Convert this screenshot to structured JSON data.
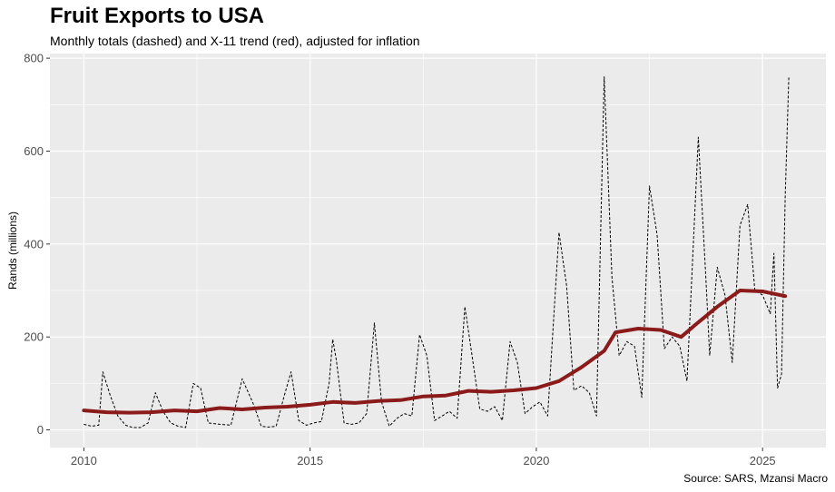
{
  "chart_data": {
    "type": "line",
    "title": "Fruit Exports to USA",
    "subtitle": "Monthly totals (dashed) and X-11 trend (red), adjusted for inflation",
    "caption": "Source: SARS, Mzansi Macro",
    "xlabel": "",
    "ylabel": "Rands (millions)",
    "xlim": [
      2009.25,
      2026.4
    ],
    "ylim": [
      -38,
      810
    ],
    "x_ticks": [
      2010,
      2015,
      2020,
      2025
    ],
    "y_ticks": [
      0,
      200,
      400,
      600,
      800
    ],
    "grid": true,
    "colors": {
      "panel": "#ebebeb",
      "grid": "#ffffff",
      "trend": "#8b1a1a",
      "monthly": "#000000"
    },
    "series": [
      {
        "name": "Monthly totals",
        "style": "dashed",
        "points": [
          [
            2010.0,
            12
          ],
          [
            2010.17,
            8
          ],
          [
            2010.33,
            10
          ],
          [
            2010.42,
            125
          ],
          [
            2010.58,
            75
          ],
          [
            2010.75,
            30
          ],
          [
            2010.92,
            10
          ],
          [
            2011.08,
            5
          ],
          [
            2011.25,
            5
          ],
          [
            2011.42,
            15
          ],
          [
            2011.58,
            80
          ],
          [
            2011.75,
            40
          ],
          [
            2011.92,
            15
          ],
          [
            2012.08,
            8
          ],
          [
            2012.25,
            5
          ],
          [
            2012.42,
            100
          ],
          [
            2012.58,
            90
          ],
          [
            2012.75,
            15
          ],
          [
            2013.0,
            12
          ],
          [
            2013.25,
            10
          ],
          [
            2013.5,
            110
          ],
          [
            2013.75,
            55
          ],
          [
            2013.92,
            8
          ],
          [
            2014.08,
            6
          ],
          [
            2014.25,
            8
          ],
          [
            2014.42,
            70
          ],
          [
            2014.58,
            125
          ],
          [
            2014.75,
            20
          ],
          [
            2014.92,
            10
          ],
          [
            2015.08,
            15
          ],
          [
            2015.25,
            18
          ],
          [
            2015.42,
            100
          ],
          [
            2015.5,
            195
          ],
          [
            2015.58,
            150
          ],
          [
            2015.75,
            15
          ],
          [
            2015.92,
            12
          ],
          [
            2016.08,
            15
          ],
          [
            2016.25,
            35
          ],
          [
            2016.42,
            230
          ],
          [
            2016.58,
            60
          ],
          [
            2016.75,
            8
          ],
          [
            2016.92,
            25
          ],
          [
            2017.08,
            35
          ],
          [
            2017.25,
            30
          ],
          [
            2017.42,
            205
          ],
          [
            2017.58,
            160
          ],
          [
            2017.75,
            20
          ],
          [
            2017.92,
            30
          ],
          [
            2018.08,
            40
          ],
          [
            2018.25,
            25
          ],
          [
            2018.42,
            265
          ],
          [
            2018.58,
            160
          ],
          [
            2018.75,
            45
          ],
          [
            2018.92,
            40
          ],
          [
            2019.08,
            50
          ],
          [
            2019.25,
            20
          ],
          [
            2019.42,
            190
          ],
          [
            2019.58,
            145
          ],
          [
            2019.75,
            35
          ],
          [
            2019.92,
            50
          ],
          [
            2020.08,
            60
          ],
          [
            2020.25,
            30
          ],
          [
            2020.5,
            425
          ],
          [
            2020.67,
            310
          ],
          [
            2020.83,
            85
          ],
          [
            2021.0,
            95
          ],
          [
            2021.17,
            80
          ],
          [
            2021.33,
            30
          ],
          [
            2021.5,
            760
          ],
          [
            2021.67,
            330
          ],
          [
            2021.83,
            160
          ],
          [
            2022.0,
            190
          ],
          [
            2022.17,
            180
          ],
          [
            2022.33,
            70
          ],
          [
            2022.5,
            525
          ],
          [
            2022.67,
            420
          ],
          [
            2022.83,
            175
          ],
          [
            2023.0,
            200
          ],
          [
            2023.17,
            180
          ],
          [
            2023.33,
            105
          ],
          [
            2023.58,
            630
          ],
          [
            2023.75,
            320
          ],
          [
            2023.83,
            160
          ],
          [
            2024.0,
            350
          ],
          [
            2024.17,
            290
          ],
          [
            2024.33,
            145
          ],
          [
            2024.5,
            440
          ],
          [
            2024.67,
            485
          ],
          [
            2024.83,
            300
          ],
          [
            2025.0,
            290
          ],
          [
            2025.17,
            250
          ],
          [
            2025.25,
            380
          ],
          [
            2025.33,
            90
          ],
          [
            2025.42,
            120
          ],
          [
            2025.5,
            500
          ],
          [
            2025.58,
            760
          ]
        ]
      },
      {
        "name": "X-11 trend",
        "style": "solid",
        "points": [
          [
            2010.0,
            42
          ],
          [
            2010.5,
            38
          ],
          [
            2011.0,
            37
          ],
          [
            2011.5,
            38
          ],
          [
            2012.0,
            42
          ],
          [
            2012.5,
            40
          ],
          [
            2013.0,
            47
          ],
          [
            2013.5,
            44
          ],
          [
            2014.0,
            48
          ],
          [
            2014.5,
            50
          ],
          [
            2015.0,
            54
          ],
          [
            2015.5,
            60
          ],
          [
            2016.0,
            58
          ],
          [
            2016.5,
            62
          ],
          [
            2017.0,
            64
          ],
          [
            2017.5,
            72
          ],
          [
            2018.0,
            74
          ],
          [
            2018.5,
            84
          ],
          [
            2019.0,
            82
          ],
          [
            2019.5,
            85
          ],
          [
            2020.0,
            90
          ],
          [
            2020.5,
            105
          ],
          [
            2021.0,
            135
          ],
          [
            2021.5,
            170
          ],
          [
            2021.75,
            210
          ],
          [
            2022.25,
            218
          ],
          [
            2022.75,
            215
          ],
          [
            2023.2,
            200
          ],
          [
            2023.5,
            225
          ],
          [
            2024.0,
            265
          ],
          [
            2024.5,
            300
          ],
          [
            2025.0,
            298
          ],
          [
            2025.5,
            288
          ]
        ]
      }
    ]
  }
}
